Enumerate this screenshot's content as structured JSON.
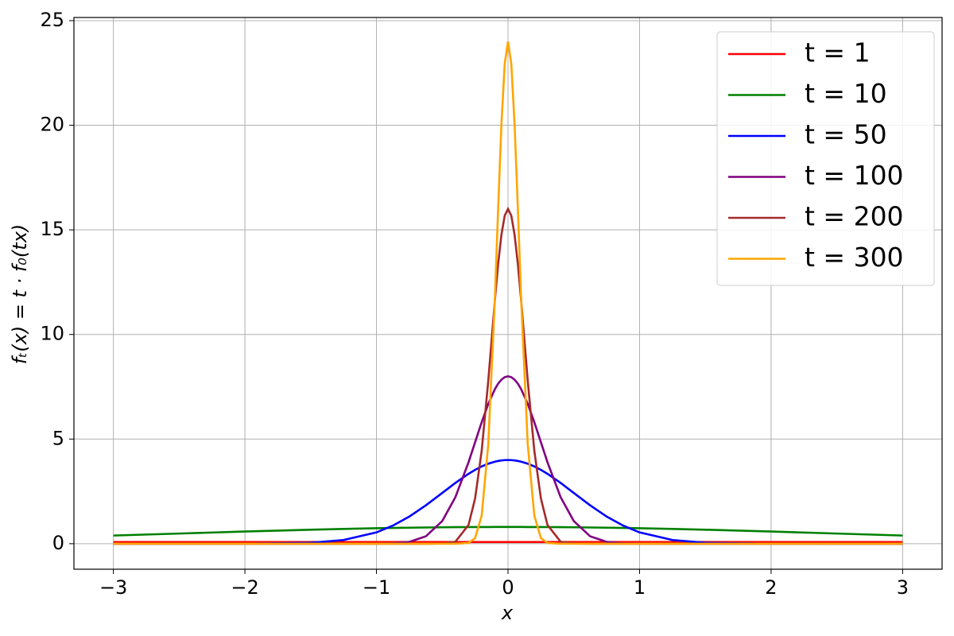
{
  "chart_data": {
    "type": "line",
    "xlabel": "x",
    "ylabel": "fₜ(x) = t · f₀(tx)",
    "x": [
      -3,
      -2.5,
      -2,
      -1.5,
      -1.25,
      -1,
      -0.875,
      -0.75,
      -0.625,
      -0.5,
      -0.4,
      -0.3,
      -0.25,
      -0.2,
      -0.15,
      -0.1,
      -0.075,
      -0.05,
      -0.025,
      0,
      0.025,
      0.05,
      0.075,
      0.1,
      0.15,
      0.2,
      0.25,
      0.3,
      0.4,
      0.5,
      0.625,
      0.75,
      0.875,
      1,
      1.25,
      1.5,
      2,
      2.5,
      3
    ],
    "series": [
      {
        "name": "t = 1",
        "color": "#ff0000",
        "values": [
          0.078,
          0.079,
          0.079,
          0.08,
          0.08,
          0.08,
          0.08,
          0.08,
          0.08,
          0.08,
          0.08,
          0.08,
          0.08,
          0.08,
          0.08,
          0.08,
          0.08,
          0.08,
          0.08,
          0.08,
          0.08,
          0.08,
          0.08,
          0.08,
          0.08,
          0.08,
          0.08,
          0.08,
          0.08,
          0.08,
          0.08,
          0.08,
          0.08,
          0.08,
          0.08,
          0.08,
          0.079,
          0.079,
          0.078
        ]
      },
      {
        "name": "t = 10",
        "color": "#008000",
        "values": [
          0.39,
          0.485,
          0.581,
          0.668,
          0.706,
          0.738,
          0.752,
          0.765,
          0.775,
          0.784,
          0.79,
          0.794,
          0.795,
          0.797,
          0.798,
          0.799,
          0.799,
          0.8,
          0.8,
          0.8,
          0.8,
          0.8,
          0.799,
          0.799,
          0.798,
          0.797,
          0.795,
          0.794,
          0.79,
          0.784,
          0.775,
          0.765,
          0.752,
          0.738,
          0.706,
          0.668,
          0.581,
          0.485,
          0.39
        ]
      },
      {
        "name": "t = 50",
        "color": "#0000ff",
        "values": [
          0,
          0,
          0.001,
          0.044,
          0.176,
          0.541,
          0.865,
          1.299,
          1.831,
          2.426,
          2.904,
          3.341,
          3.53,
          3.693,
          3.824,
          3.921,
          3.955,
          3.98,
          3.995,
          4,
          3.995,
          3.98,
          3.955,
          3.921,
          3.824,
          3.693,
          3.53,
          3.341,
          2.904,
          2.426,
          1.831,
          1.299,
          0.865,
          0.541,
          0.176,
          0.044,
          0.001,
          0,
          0
        ]
      },
      {
        "name": "t = 100",
        "color": "#800080",
        "values": [
          0,
          0,
          0,
          0,
          0,
          0.003,
          0.018,
          0.089,
          0.351,
          1.083,
          2.224,
          3.894,
          4.852,
          5.809,
          6.683,
          7.385,
          7.648,
          7.842,
          7.96,
          8,
          7.96,
          7.842,
          7.648,
          7.385,
          6.683,
          5.809,
          4.852,
          3.894,
          2.224,
          1.083,
          0.351,
          0.089,
          0.018,
          0.003,
          0,
          0,
          0,
          0,
          0
        ]
      },
      {
        "name": "t = 200",
        "color": "#a52a2a",
        "values": [
          0,
          0,
          0,
          0,
          0,
          0,
          0,
          0,
          0,
          0.005,
          0.096,
          0.898,
          2.165,
          4.448,
          7.787,
          11.62,
          13.36,
          14.77,
          15.68,
          16,
          15.68,
          14.77,
          13.36,
          11.62,
          7.787,
          4.448,
          2.165,
          0.898,
          0.096,
          0.005,
          0,
          0,
          0,
          0,
          0,
          0,
          0,
          0,
          0
        ]
      },
      {
        "name": "t = 300",
        "color": "#ffa500",
        "values": [
          0,
          0,
          0,
          0,
          0,
          0,
          0,
          0,
          0,
          0,
          0,
          0.037,
          0.267,
          1.347,
          4.752,
          11.68,
          16.01,
          20.05,
          22.94,
          24,
          22.94,
          20.05,
          16.01,
          11.68,
          4.752,
          1.347,
          0.267,
          0.037,
          0,
          0,
          0,
          0,
          0,
          0,
          0,
          0,
          0,
          0,
          0
        ]
      }
    ],
    "xlim": [
      -3.3,
      3.3
    ],
    "xticks": [
      {
        "value": -3,
        "label": "−3"
      },
      {
        "value": -2,
        "label": "−2"
      },
      {
        "value": -1,
        "label": "−1"
      },
      0,
      1,
      2,
      3
    ],
    "ylim": [
      -1.22,
      25.15
    ],
    "yticks": [
      0,
      5,
      10,
      15,
      20,
      25
    ],
    "grid": true,
    "legend": "upper right"
  }
}
